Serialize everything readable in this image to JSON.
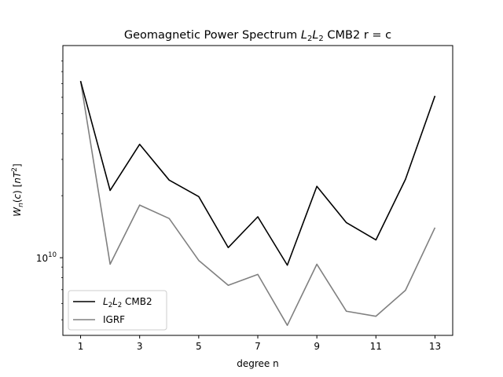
{
  "chart_data": {
    "type": "line",
    "title": "Geomagnetic Power Spectrum L₂L₂ CMB2 r = c",
    "xlabel": "degree n",
    "ylabel": "Wₙ(c) [nT²]",
    "yscale": "log",
    "x": [
      1,
      2,
      3,
      4,
      5,
      6,
      7,
      8,
      9,
      10,
      11,
      12,
      13
    ],
    "xticks": [
      1,
      3,
      5,
      7,
      9,
      11,
      13
    ],
    "xlim": [
      0.4,
      13.6
    ],
    "ylim": [
      4200000000.0,
      107000000000.0
    ],
    "yticks": [
      {
        "value": 10000000000.0,
        "base": "10",
        "exp": "10"
      }
    ],
    "series": [
      {
        "name": "L₂L₂ CMB2",
        "color": "#000000",
        "values": [
          72000000000.0,
          21200000000.0,
          35500000000.0,
          23800000000.0,
          19800000000.0,
          11200000000.0,
          15800000000.0,
          9200000000.0,
          22200000000.0,
          14800000000.0,
          12200000000.0,
          24000000000.0,
          61000000000.0
        ]
      },
      {
        "name": "IGRF",
        "color": "#808080",
        "values": [
          72000000000.0,
          9300000000.0,
          18000000000.0,
          15500000000.0,
          9700000000.0,
          7350000000.0,
          8300000000.0,
          4700000000.0,
          9300000000.0,
          5500000000.0,
          5200000000.0,
          6950000000.0,
          14000000000.0
        ]
      }
    ],
    "legend": "lower-left",
    "grid": false
  }
}
